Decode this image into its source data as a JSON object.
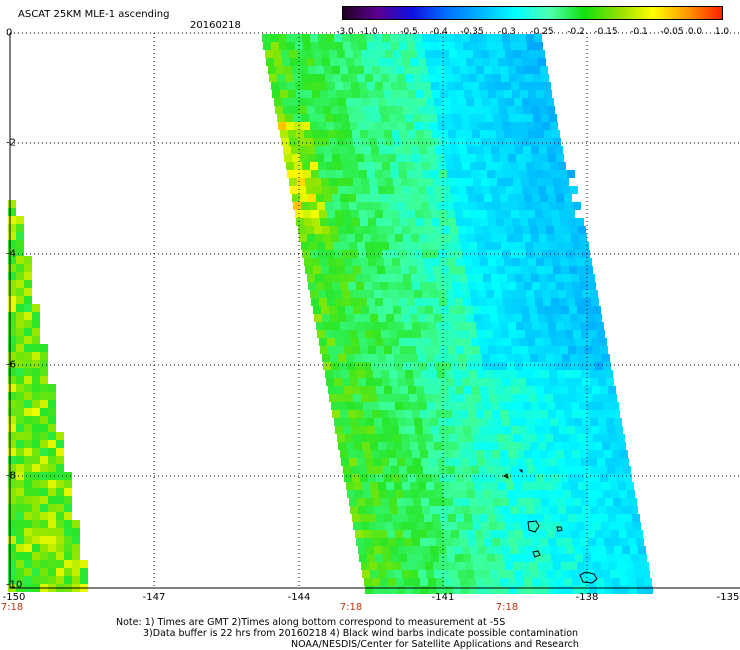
{
  "header": {
    "title": "ASCAT 25KM MLE-1 ascending",
    "date": "20160218"
  },
  "colorbar": {
    "labels": [
      "-3.0",
      "-1.0",
      "-0.5",
      "-0.4",
      "-0.35",
      "-0.3",
      "-0.25",
      "-0.2",
      "-0.15",
      "-0.1",
      "-0.05",
      "0.0",
      "1.0"
    ],
    "colors": [
      "#220022",
      "#5a0090",
      "#1010e0",
      "#0070ff",
      "#00b4ff",
      "#00ffff",
      "#50ffb0",
      "#10e010",
      "#90e000",
      "#ffff00",
      "#ff9800",
      "#ff2000"
    ]
  },
  "axes": {
    "x_ticks": [
      "-150",
      "-147",
      "-144",
      "-141",
      "-138",
      "-135"
    ],
    "y_ticks": [
      "0",
      "-2",
      "-4",
      "-6",
      "-8",
      "-10"
    ],
    "time_labels": [
      "7:18",
      "7:18",
      "7:18"
    ]
  },
  "notes": {
    "line1": "Note: 1) Times are GMT 2)Times along bottom correspond to measurement at -5S",
    "line2": "3)Data buffer is 22 hrs from 20160218 4) Black wind barbs indicate possible contamination",
    "line3": "NOAA/NESDIS/Center for Satellite Applications and Research"
  }
}
